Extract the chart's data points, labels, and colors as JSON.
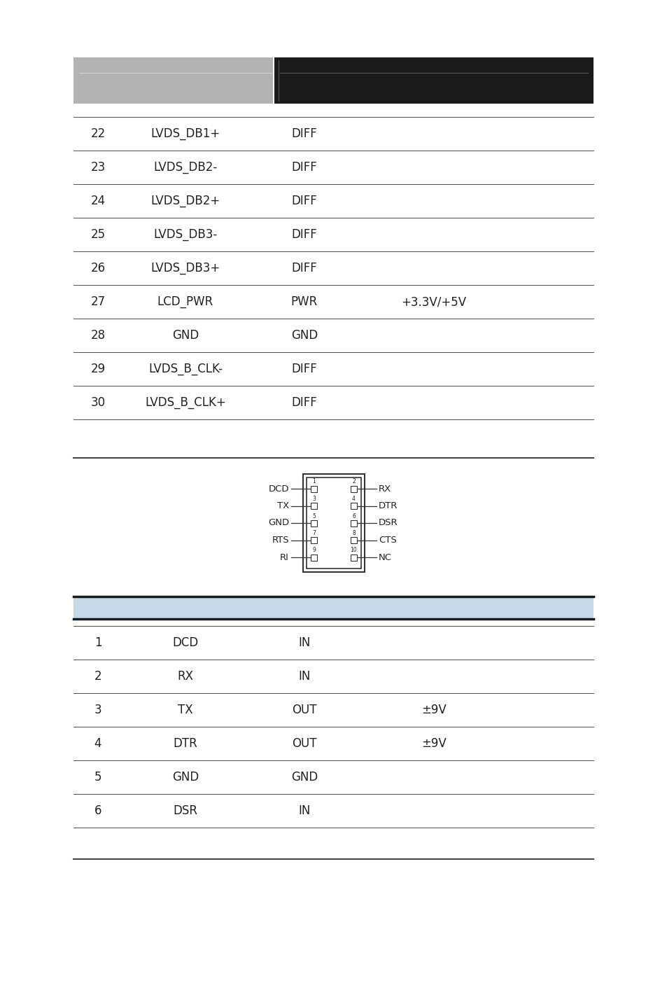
{
  "bg_color": "#ffffff",
  "header_gray_color": "#b3b3b3",
  "header_black_color": "#1a1a1a",
  "table_line_color": "#555555",
  "blue_header_color": "#c5d9e8",
  "blue_header_border": "#1a1a1a",
  "section_separator_color": "#444444",
  "top_table": {
    "rows": [
      {
        "pin": "22",
        "signal": "LVDS_DB1+",
        "type": "DIFF",
        "note": ""
      },
      {
        "pin": "23",
        "signal": "LVDS_DB2-",
        "type": "DIFF",
        "note": ""
      },
      {
        "pin": "24",
        "signal": "LVDS_DB2+",
        "type": "DIFF",
        "note": ""
      },
      {
        "pin": "25",
        "signal": "LVDS_DB3-",
        "type": "DIFF",
        "note": ""
      },
      {
        "pin": "26",
        "signal": "LVDS_DB3+",
        "type": "DIFF",
        "note": ""
      },
      {
        "pin": "27",
        "signal": "LCD_PWR",
        "type": "PWR",
        "note": "+3.3V/+5V"
      },
      {
        "pin": "28",
        "signal": "GND",
        "type": "GND",
        "note": ""
      },
      {
        "pin": "29",
        "signal": "LVDS_B_CLK-",
        "type": "DIFF",
        "note": ""
      },
      {
        "pin": "30",
        "signal": "LVDS_B_CLK+",
        "type": "DIFF",
        "note": ""
      }
    ]
  },
  "bottom_table": {
    "rows": [
      {
        "pin": "1",
        "signal": "DCD",
        "type": "IN",
        "note": ""
      },
      {
        "pin": "2",
        "signal": "RX",
        "type": "IN",
        "note": ""
      },
      {
        "pin": "3",
        "signal": "TX",
        "type": "OUT",
        "note": "±9V"
      },
      {
        "pin": "4",
        "signal": "DTR",
        "type": "OUT",
        "note": "±9V"
      },
      {
        "pin": "5",
        "signal": "GND",
        "type": "GND",
        "note": ""
      },
      {
        "pin": "6",
        "signal": "DSR",
        "type": "IN",
        "note": ""
      }
    ]
  },
  "connector_left_labels": [
    "DCD",
    "TX",
    "GND",
    "RTS",
    "RI"
  ],
  "connector_right_labels": [
    "RX",
    "DTR",
    "DSR",
    "CTS",
    "NC"
  ],
  "connector_left_pins": [
    "1",
    "3",
    "5",
    "7",
    "9"
  ],
  "connector_right_pins": [
    "2",
    "4",
    "6",
    "8",
    "10"
  ],
  "font_size_table": 12,
  "font_size_connector": 9.5,
  "text_color": "#222222"
}
